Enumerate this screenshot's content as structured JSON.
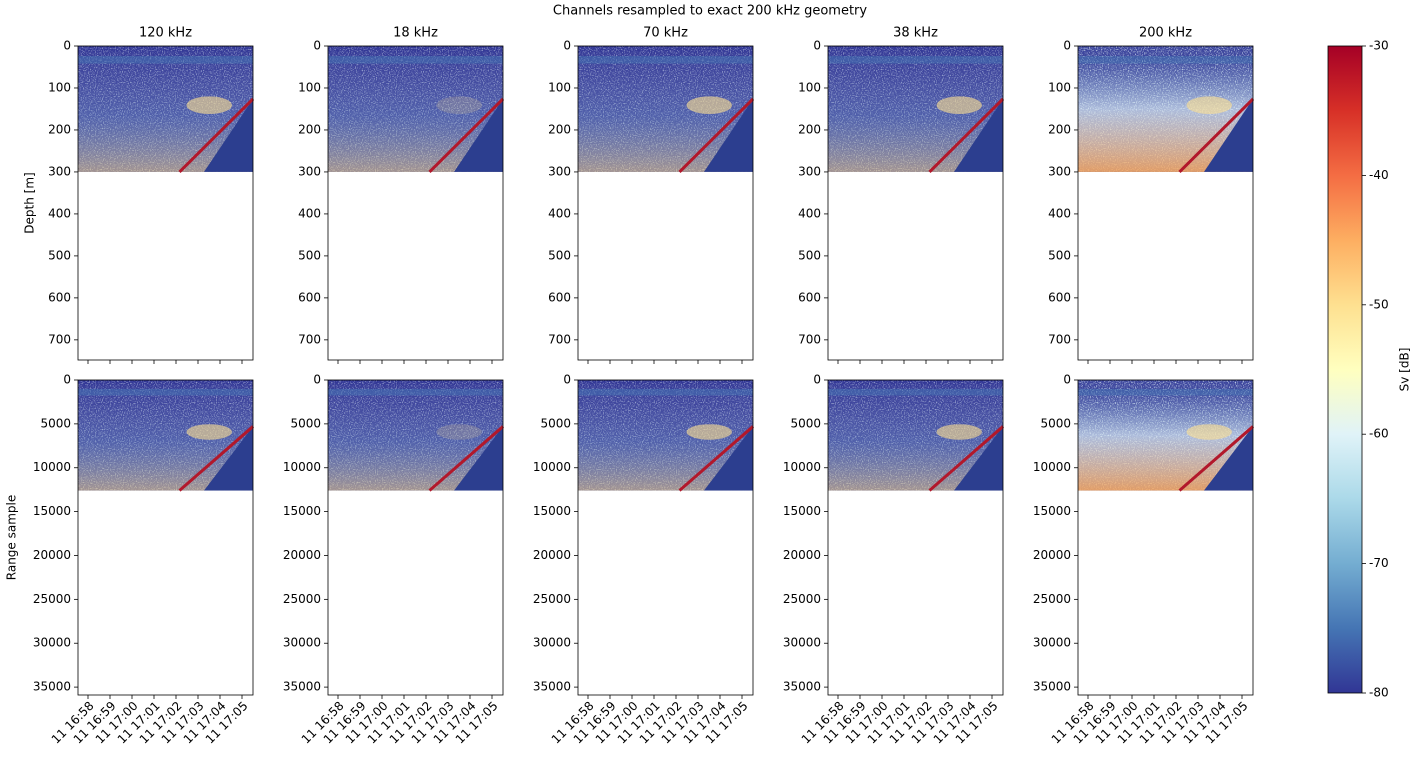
{
  "title": "Channels resampled to exact 200 kHz geometry",
  "chart_data": [
    {
      "type": "image",
      "title": "120 kHz",
      "ylabel": "Depth [m]",
      "ylim": [
        748,
        0
      ],
      "yticks": [
        0,
        100,
        200,
        300,
        400,
        500,
        600,
        700
      ],
      "image_ylim": [
        300,
        0
      ]
    },
    {
      "type": "image",
      "title": "18 kHz",
      "ylim": [
        748,
        0
      ],
      "yticks": [
        0,
        100,
        200,
        300,
        400,
        500,
        600,
        700
      ],
      "image_ylim": [
        300,
        0
      ]
    },
    {
      "type": "image",
      "title": "70 kHz",
      "ylim": [
        748,
        0
      ],
      "yticks": [
        0,
        100,
        200,
        300,
        400,
        500,
        600,
        700
      ],
      "image_ylim": [
        300,
        0
      ]
    },
    {
      "type": "image",
      "title": "38 kHz",
      "ylim": [
        748,
        0
      ],
      "yticks": [
        0,
        100,
        200,
        300,
        400,
        500,
        600,
        700
      ],
      "image_ylim": [
        300,
        0
      ]
    },
    {
      "type": "image",
      "title": "200 kHz",
      "ylim": [
        748,
        0
      ],
      "yticks": [
        0,
        100,
        200,
        300,
        400,
        500,
        600,
        700
      ],
      "image_ylim": [
        300,
        0
      ]
    },
    {
      "type": "image",
      "ylabel": "Range sample",
      "ylim": [
        35900,
        0
      ],
      "yticks": [
        0,
        5000,
        10000,
        15000,
        20000,
        25000,
        30000,
        35000
      ],
      "image_ylim": [
        12600,
        0
      ],
      "xticks": [
        "11 16:58",
        "11 16:59",
        "11 17:00",
        "11 17:01",
        "11 17:02",
        "11 17:03",
        "11 17:04",
        "11 17:05"
      ]
    },
    {
      "type": "image",
      "ylim": [
        35900,
        0
      ],
      "yticks": [
        0,
        5000,
        10000,
        15000,
        20000,
        25000,
        30000,
        35000
      ],
      "image_ylim": [
        12600,
        0
      ],
      "xticks": [
        "11 16:58",
        "11 16:59",
        "11 17:00",
        "11 17:01",
        "11 17:02",
        "11 17:03",
        "11 17:04",
        "11 17:05"
      ]
    },
    {
      "type": "image",
      "ylim": [
        35900,
        0
      ],
      "yticks": [
        0,
        5000,
        10000,
        15000,
        20000,
        25000,
        30000,
        35000
      ],
      "image_ylim": [
        12600,
        0
      ],
      "xticks": [
        "11 16:58",
        "11 16:59",
        "11 17:00",
        "11 17:01",
        "11 17:02",
        "11 17:03",
        "11 17:04",
        "11 17:05"
      ]
    },
    {
      "type": "image",
      "ylim": [
        35900,
        0
      ],
      "yticks": [
        0,
        5000,
        10000,
        15000,
        20000,
        25000,
        30000,
        35000
      ],
      "image_ylim": [
        12600,
        0
      ],
      "xticks": [
        "11 16:58",
        "11 16:59",
        "11 17:00",
        "11 17:01",
        "11 17:02",
        "11 17:03",
        "11 17:04",
        "11 17:05"
      ]
    },
    {
      "type": "image",
      "ylim": [
        35900,
        0
      ],
      "yticks": [
        0,
        5000,
        10000,
        15000,
        20000,
        25000,
        30000,
        35000
      ],
      "image_ylim": [
        12600,
        0
      ],
      "xticks": [
        "11 16:58",
        "11 16:59",
        "11 17:00",
        "11 17:01",
        "11 17:02",
        "11 17:03",
        "11 17:04",
        "11 17:05"
      ]
    }
  ],
  "colorbar": {
    "label": "Sv [dB]",
    "lim": [
      -80,
      -30
    ],
    "ticks": [
      -80,
      -70,
      -60,
      -50,
      -40,
      -30
    ],
    "colormap": [
      "#313695",
      "#4575b4",
      "#74add1",
      "#abd9e9",
      "#e0f3f8",
      "#ffffbf",
      "#fee090",
      "#fdae61",
      "#f46d43",
      "#d73027",
      "#a50026"
    ]
  }
}
